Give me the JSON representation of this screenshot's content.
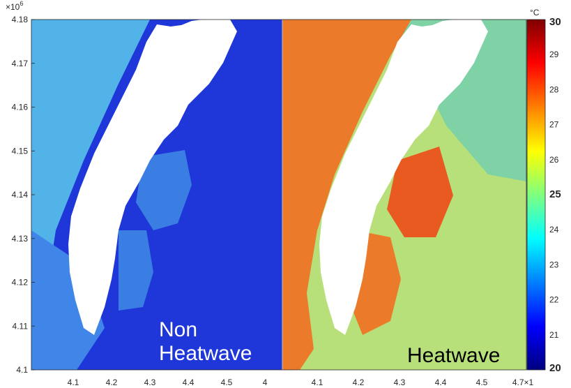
{
  "chart_data": {
    "type": "heatmap",
    "panels": [
      {
        "label_lines": [
          "Non",
          "Heatwave"
        ],
        "label_color": "#ffffff",
        "colors": {
          "sea": "#1f37d8",
          "coast": "#3f86e8",
          "offshore": "#52b3e8",
          "bay": "#3a7ee3",
          "land": "#ffffff"
        },
        "x_ticks": [
          "4.1",
          "4.2",
          "4.3",
          "4.4",
          "4.5",
          "4"
        ]
      },
      {
        "label_lines": [
          "Heatwave"
        ],
        "label_color": "#000000",
        "colors": {
          "sea": "#b7e07a",
          "coast": "#eb7a2a",
          "offshore": "#7ed2a6",
          "bay": "#e85a20",
          "land": "#ffffff"
        },
        "x_ticks": [
          "4.1",
          "4.2",
          "4.3",
          "4.4",
          "4.5",
          "4.7×1"
        ]
      }
    ],
    "y_axis": {
      "exponent": "×10",
      "exponent_power": "6",
      "ticks": [
        "4.18",
        "4.17",
        "4.16",
        "4.15",
        "4.14",
        "4.13",
        "4.12",
        "4.11",
        "4.1"
      ],
      "range": [
        4.1,
        4.18
      ]
    },
    "x_axis": {
      "range": [
        4.03,
        4.6
      ]
    },
    "colorbar": {
      "unit": "°C",
      "range": [
        20,
        30
      ],
      "ticks": [
        "30",
        "29",
        "28",
        "27",
        "26",
        "25",
        "24",
        "23",
        "22",
        "21",
        "20"
      ],
      "bold_ticks": [
        "30",
        "25",
        "20"
      ],
      "colormap": "jet",
      "colormap_stops": [
        "#00007f",
        "#0000ff",
        "#007fff",
        "#00ffff",
        "#7fff7f",
        "#ffff00",
        "#ff7f00",
        "#ff0000",
        "#7f0000"
      ]
    }
  }
}
